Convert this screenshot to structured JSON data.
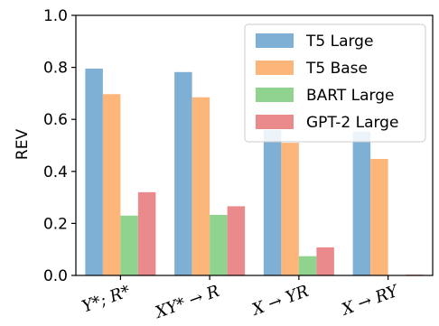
{
  "chart_data": {
    "type": "bar",
    "ylabel": "REV",
    "xlabel": "",
    "ylim": [
      0.0,
      1.0
    ],
    "yticks": [
      "0.0",
      "0.2",
      "0.4",
      "0.6",
      "0.8",
      "1.0"
    ],
    "categories": [
      "Y*; R*",
      "XY* → R",
      "X → YR",
      "X → RY"
    ],
    "series": [
      {
        "name": "T5 Large",
        "color": "#7eb0d5",
        "values": [
          0.795,
          0.782,
          0.56,
          0.553
        ]
      },
      {
        "name": "T5 Base",
        "color": "#fdb67a",
        "values": [
          0.697,
          0.685,
          0.51,
          0.448
        ]
      },
      {
        "name": "BART Large",
        "color": "#8fd38f",
        "values": [
          0.23,
          0.233,
          0.074,
          0.0
        ]
      },
      {
        "name": "GPT-2 Large",
        "color": "#ea8a8c",
        "values": [
          0.32,
          0.266,
          0.108,
          0.003
        ]
      }
    ],
    "legend_position": "top-right",
    "grid": false
  }
}
